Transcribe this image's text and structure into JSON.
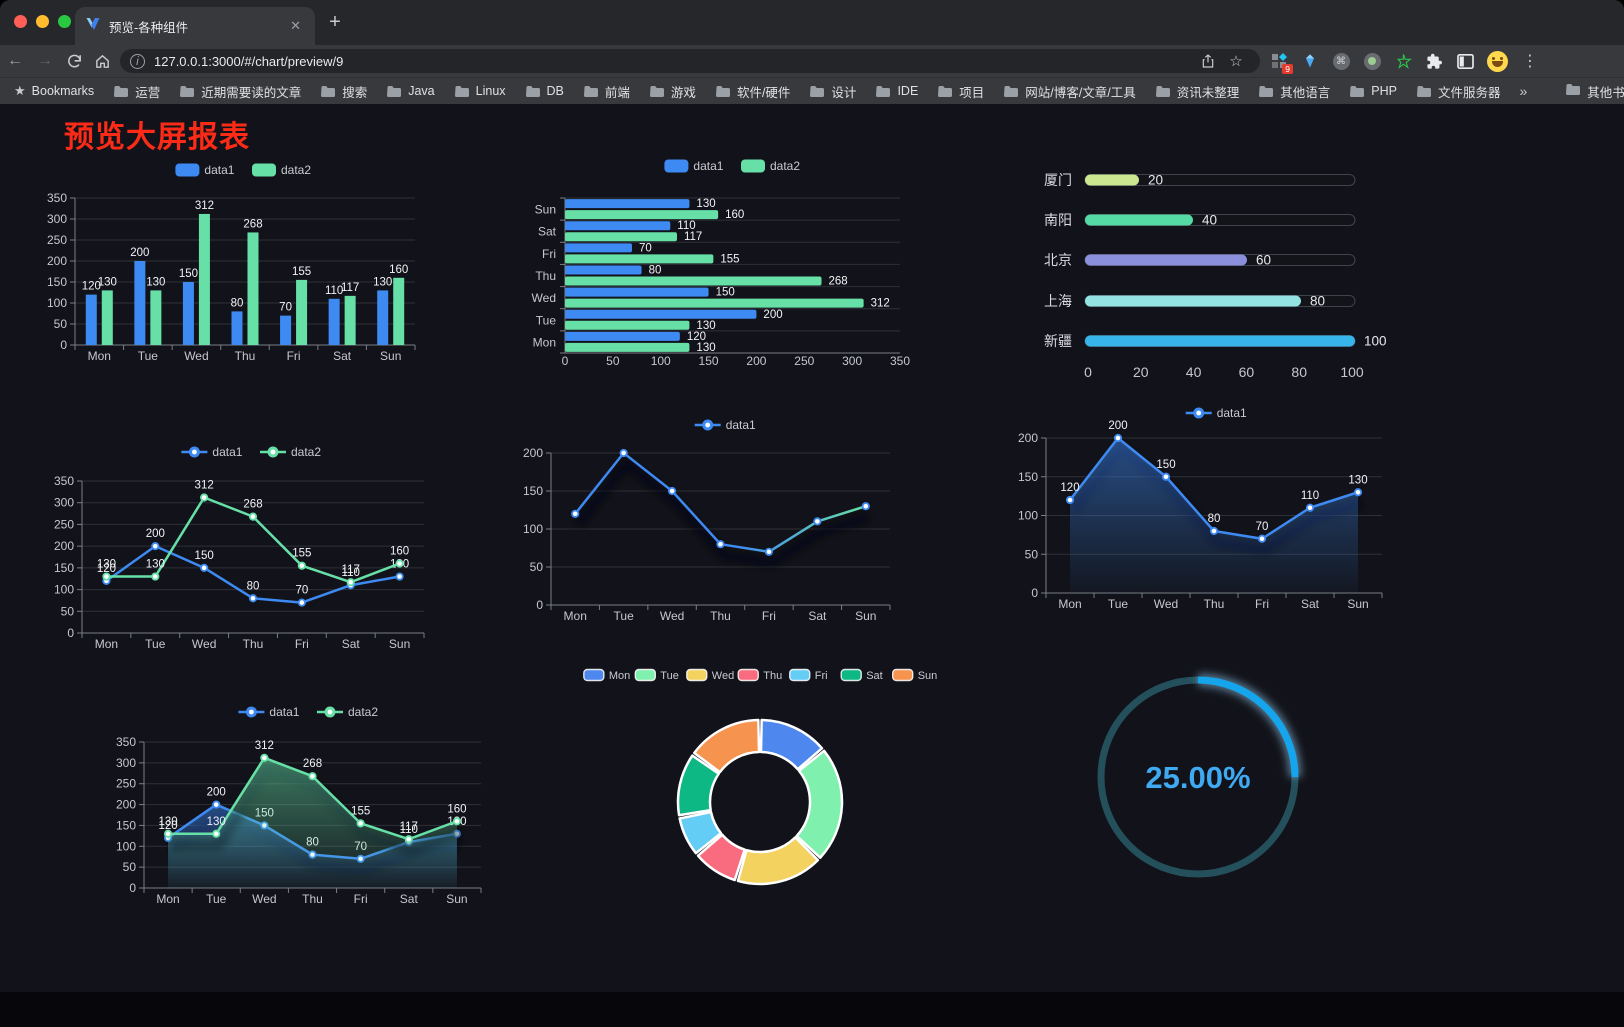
{
  "browser": {
    "tab": {
      "title": "预览-各种组件",
      "close_glyph": "✕"
    },
    "new_tab_glyph": "+",
    "url": "127.0.0.1:3000/#/chart/preview/9",
    "extension_badge": "9",
    "bookmarks_bar": {
      "root_label": "Bookmarks",
      "items": [
        "运营",
        "近期需要读的文章",
        "搜索",
        "Java",
        "Linux",
        "DB",
        "前端",
        "游戏",
        "软件/硬件",
        "设计",
        "IDE",
        "项目",
        "网站/博客/文章/工具",
        "资讯未整理",
        "其他语言",
        "PHP",
        "文件服务器"
      ],
      "overflow_glyph": "»",
      "other_label": "其他书签"
    }
  },
  "page": {
    "title": "预览大屏报表",
    "title_color": "#fb2b17",
    "background": "#12131a"
  },
  "chart_data": [
    {
      "id": "bar-grouped",
      "type": "bar",
      "categories": [
        "Mon",
        "Tue",
        "Wed",
        "Thu",
        "Fri",
        "Sat",
        "Sun"
      ],
      "series": [
        {
          "name": "data1",
          "color": "#3e8af3",
          "values": [
            120,
            200,
            150,
            80,
            70,
            110,
            130
          ]
        },
        {
          "name": "data2",
          "color": "#67e0a8",
          "values": [
            130,
            130,
            312,
            268,
            155,
            117,
            160
          ]
        }
      ],
      "ylim": [
        0,
        350
      ],
      "ytick_step": 50,
      "value_labels": true,
      "legend_position": "top",
      "grid": true
    },
    {
      "id": "bar-horizontal",
      "type": "bar-horizontal",
      "categories": [
        "Mon",
        "Tue",
        "Wed",
        "Thu",
        "Fri",
        "Sat",
        "Sun"
      ],
      "category_display_order": "top-to-bottom reversed (Sun at top)",
      "series": [
        {
          "name": "data1",
          "color": "#3e8af3",
          "values": [
            120,
            200,
            150,
            80,
            70,
            110,
            130
          ]
        },
        {
          "name": "data2",
          "color": "#67e0a8",
          "values": [
            130,
            130,
            312,
            268,
            155,
            117,
            160
          ]
        }
      ],
      "xlim": [
        0,
        350
      ],
      "xticks": [
        0,
        50,
        100,
        150,
        200,
        250,
        300,
        350
      ],
      "value_labels": true,
      "legend_position": "top"
    },
    {
      "id": "city-progress",
      "type": "bar",
      "subtype": "progress-capsules",
      "rows": [
        {
          "label": "厦门",
          "value": 20,
          "color": "#cbe790"
        },
        {
          "label": "南阳",
          "value": 40,
          "color": "#55d9a5"
        },
        {
          "label": "北京",
          "value": 60,
          "color": "#8b90dd"
        },
        {
          "label": "上海",
          "value": 80,
          "color": "#94e2e2"
        },
        {
          "label": "新疆",
          "value": 100,
          "color": "#37b4e9"
        }
      ],
      "xlim": [
        0,
        100
      ],
      "xticks": [
        0,
        20,
        40,
        60,
        80,
        100
      ]
    },
    {
      "id": "line-two",
      "type": "line",
      "categories": [
        "Mon",
        "Tue",
        "Wed",
        "Thu",
        "Fri",
        "Sat",
        "Sun"
      ],
      "series": [
        {
          "name": "data1",
          "color": "#3e8af3",
          "values": [
            120,
            200,
            150,
            80,
            70,
            110,
            130
          ]
        },
        {
          "name": "data2",
          "color": "#67e0a8",
          "values": [
            130,
            130,
            312,
            268,
            155,
            117,
            160
          ]
        }
      ],
      "ylim": [
        0,
        350
      ],
      "ytick_step": 50,
      "value_labels": true,
      "legend_position": "top"
    },
    {
      "id": "line-gradient",
      "type": "line",
      "categories": [
        "Mon",
        "Tue",
        "Wed",
        "Thu",
        "Fri",
        "Sat",
        "Sun"
      ],
      "series": [
        {
          "name": "data1",
          "color": "#3e8af3",
          "gradient": [
            "#3e8af3",
            "#67e0a8"
          ],
          "values": [
            120,
            200,
            150,
            80,
            70,
            110,
            130
          ]
        }
      ],
      "ylim": [
        0,
        200
      ],
      "ytick_step": 50,
      "value_labels": false,
      "shadow": true,
      "legend_position": "top"
    },
    {
      "id": "area-single",
      "type": "area",
      "categories": [
        "Mon",
        "Tue",
        "Wed",
        "Thu",
        "Fri",
        "Sat",
        "Sun"
      ],
      "series": [
        {
          "name": "data1",
          "color": "#3e8af3",
          "area": true,
          "values": [
            120,
            200,
            150,
            80,
            70,
            110,
            130
          ]
        }
      ],
      "ylim": [
        0,
        200
      ],
      "ytick_step": 50,
      "value_labels": true,
      "shadow": true,
      "legend_position": "top"
    },
    {
      "id": "area-two",
      "type": "area",
      "categories": [
        "Mon",
        "Tue",
        "Wed",
        "Thu",
        "Fri",
        "Sat",
        "Sun"
      ],
      "series": [
        {
          "name": "data1",
          "color": "#3e8af3",
          "area": true,
          "values": [
            120,
            200,
            150,
            80,
            70,
            110,
            130
          ]
        },
        {
          "name": "data2",
          "color": "#67e0a8",
          "area": true,
          "values": [
            130,
            130,
            312,
            268,
            155,
            117,
            160
          ]
        }
      ],
      "ylim": [
        0,
        350
      ],
      "ytick_step": 50,
      "value_labels": true,
      "shadow": true,
      "legend_position": "top"
    },
    {
      "id": "donut",
      "type": "pie",
      "items": [
        {
          "name": "Mon",
          "value": 120,
          "color": "#4e87ed"
        },
        {
          "name": "Tue",
          "value": 200,
          "color": "#80f0ae"
        },
        {
          "name": "Wed",
          "value": 150,
          "color": "#f3d25f"
        },
        {
          "name": "Thu",
          "value": 80,
          "color": "#f96c7f"
        },
        {
          "name": "Fri",
          "value": 70,
          "color": "#63cdf6"
        },
        {
          "name": "Sat",
          "value": 110,
          "color": "#0db884"
        },
        {
          "name": "Sun",
          "value": 130,
          "color": "#f6934e"
        }
      ],
      "inner_radius_ratio": 0.61,
      "legend_position": "top",
      "slice_border_color": "#ffffff"
    },
    {
      "id": "gauge",
      "type": "gauge",
      "value": 25,
      "max": 100,
      "display": "25.00%",
      "progress_color": "#14a5ec",
      "track_color": "#24505c",
      "text_color": "#3fa9f1"
    }
  ]
}
